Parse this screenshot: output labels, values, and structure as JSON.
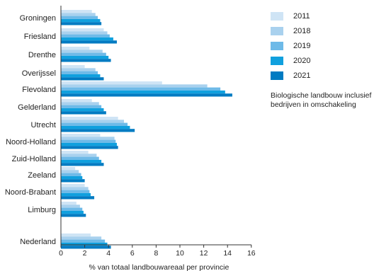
{
  "chart_data": {
    "type": "bar",
    "orientation": "horizontal",
    "categories": [
      "Groningen",
      "Friesland",
      "Drenthe",
      "Overijssel",
      "Flevoland",
      "Gelderland",
      "Utrecht",
      "Noord-Holland",
      "Zuid-Holland",
      "Zeeland",
      "Noord-Brabant",
      "Limburg",
      "Nederland"
    ],
    "series": [
      {
        "name": "2011",
        "color": "#cfe4f5",
        "values": [
          2.6,
          3.6,
          2.4,
          2.0,
          8.5,
          2.6,
          4.8,
          3.3,
          2.3,
          1.2,
          2.0,
          1.3,
          2.5
        ]
      },
      {
        "name": "2018",
        "color": "#a9d1ee",
        "values": [
          2.9,
          3.9,
          3.5,
          2.9,
          12.3,
          3.2,
          5.3,
          4.5,
          3.0,
          1.5,
          2.3,
          1.6,
          3.4
        ]
      },
      {
        "name": "2019",
        "color": "#6ebae8",
        "values": [
          3.1,
          4.1,
          3.8,
          3.1,
          13.4,
          3.4,
          5.6,
          4.6,
          3.2,
          1.7,
          2.4,
          1.8,
          3.7
        ]
      },
      {
        "name": "2020",
        "color": "#10a0de",
        "values": [
          3.3,
          4.4,
          4.0,
          3.3,
          13.8,
          3.6,
          5.8,
          4.7,
          3.4,
          1.8,
          2.5,
          1.9,
          3.9
        ]
      },
      {
        "name": "2021",
        "color": "#007bc2",
        "values": [
          3.4,
          4.7,
          4.2,
          3.6,
          14.4,
          3.8,
          6.2,
          4.8,
          3.6,
          2.0,
          2.8,
          2.1,
          4.2
        ]
      }
    ],
    "xlabel": "% van totaal landbouwareaal per provincie",
    "ylabel": "",
    "xlim": [
      0,
      16
    ],
    "xticks": [
      "0",
      "2",
      "4",
      "6",
      "8",
      "10",
      "12",
      "14",
      "16"
    ],
    "grid": false,
    "legend_position": "right",
    "note": "Biologische landbouw inclusief bedrijven in omschakeling"
  }
}
